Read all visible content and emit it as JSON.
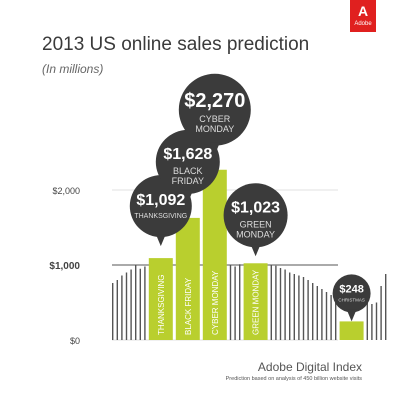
{
  "brand": {
    "glyph": "A",
    "word": "Adobe",
    "color": "#e0201f"
  },
  "title": "2013 US online sales prediction",
  "subtitle": "(In millions)",
  "footer": {
    "brand": "Adobe Digital Index",
    "note": "Prediction based on analysis of 450 billion website visits"
  },
  "chart_data": {
    "type": "bar",
    "ylim": [
      0,
      2700
    ],
    "yticks": [
      {
        "value": 0,
        "label": "$0"
      },
      {
        "value": 1000,
        "label": "$1,000"
      },
      {
        "value": 2000,
        "label": "$2,000"
      }
    ],
    "highlight_color": "#b9cf2e",
    "background_color": "#555555",
    "callout_color": "#3b3b3b",
    "bars": [
      {
        "name": "THANKSGIVING",
        "value": 1092,
        "value_label": "$1,092",
        "callout_lines": [
          "THANKSGIVING"
        ]
      },
      {
        "name": "BLACK FRIDAY",
        "value": 1628,
        "value_label": "$1,628",
        "callout_lines": [
          "BLACK",
          "FRIDAY"
        ]
      },
      {
        "name": "CYBER MONDAY",
        "value": 2270,
        "value_label": "$2,270",
        "callout_lines": [
          "CYBER",
          "MONDAY"
        ]
      },
      {
        "name": "GREEN MONDAY",
        "value": 1023,
        "value_label": "$1,023",
        "callout_lines": [
          "GREEN",
          "MONDAY"
        ]
      },
      {
        "name": "CHRISTMAS",
        "value": 248,
        "value_label": "$248",
        "callout_lines": [
          "CHRISTMAS"
        ]
      }
    ],
    "daily_values": [
      760,
      800,
      860,
      900,
      940,
      1000,
      950,
      980,
      1092,
      1628,
      2270,
      1000,
      980,
      1010,
      1023,
      1000,
      990,
      960,
      940,
      900,
      880,
      860,
      840,
      800,
      760,
      720,
      680,
      640,
      600,
      560,
      248,
      540,
      480,
      500,
      720,
      880
    ]
  }
}
